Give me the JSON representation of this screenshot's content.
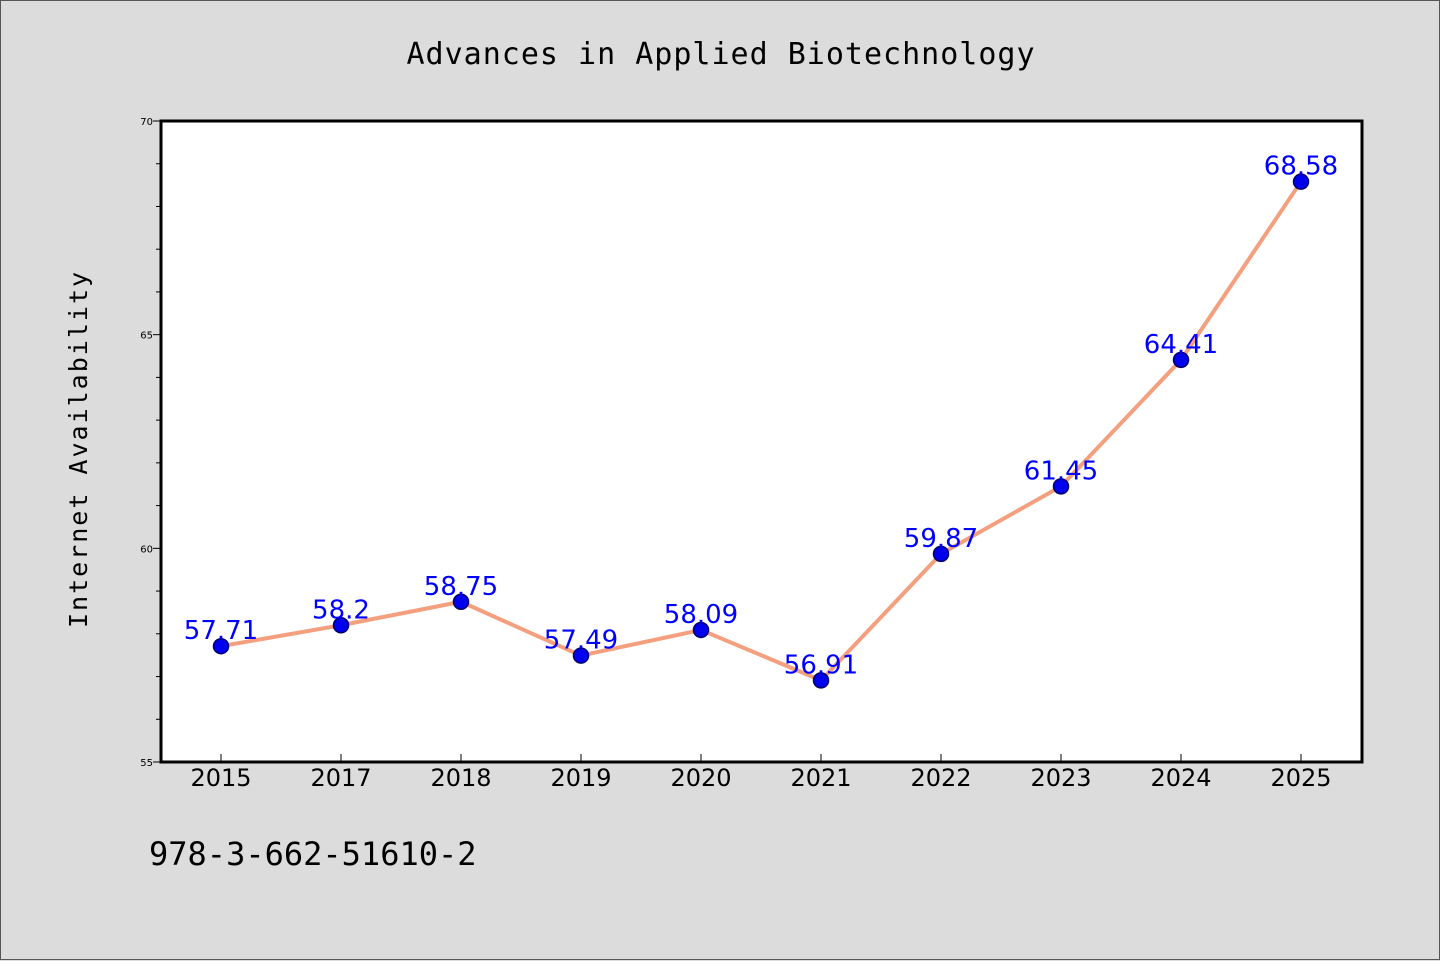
{
  "chart_data": {
    "type": "line",
    "title": "Advances in Applied Biotechnology",
    "ylabel": "Internet Availability",
    "xlabel": "",
    "categories": [
      "2015",
      "2017",
      "2018",
      "2019",
      "2020",
      "2021",
      "2022",
      "2023",
      "2024",
      "2025"
    ],
    "series": [
      {
        "values": [
          57.71,
          58.2,
          58.75,
          57.49,
          58.09,
          56.91,
          59.87,
          61.45,
          64.41,
          68.58
        ],
        "data_labels": [
          "57.71",
          "58.2",
          "58.75",
          "57.49",
          "58.09",
          "56.91",
          "59.87",
          "61.45",
          "64.41",
          "68.58"
        ]
      }
    ],
    "ylim": [
      55,
      70
    ],
    "yticks": [
      55,
      60,
      65,
      70
    ],
    "ytick_labels": [
      "55",
      "60",
      "65",
      "70"
    ],
    "grid": false,
    "line_color": "#f4a07f",
    "marker_color": "#0000ee",
    "label_color": "#0000ff"
  },
  "footer": {
    "isbn": "978-3-662-51610-2"
  }
}
